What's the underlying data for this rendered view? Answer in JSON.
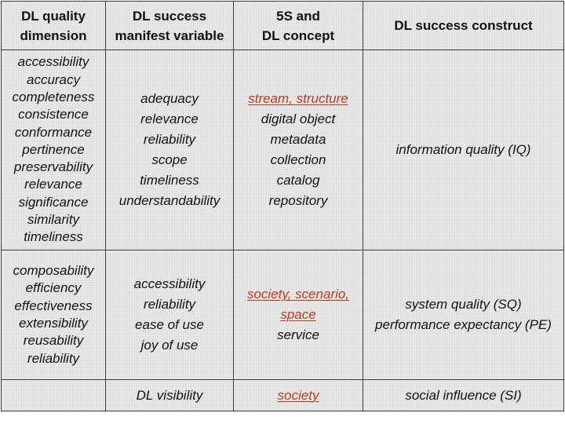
{
  "headers": [
    [
      "DL quality",
      "dimension"
    ],
    [
      "DL success",
      "manifest variable"
    ],
    [
      "5S and",
      "DL concept"
    ],
    [
      "DL success construct"
    ]
  ],
  "rows": [
    {
      "dimensions": [
        "accessibility",
        "accuracy",
        "completeness",
        "consistence",
        "conformance",
        "pertinence",
        "preservability",
        "relevance",
        "significance",
        "similarity",
        "timeliness"
      ],
      "manifest": [
        "adequacy",
        "relevance",
        "reliability",
        "scope",
        "timeliness",
        "understandability"
      ],
      "concepts": [
        {
          "text": "stream, structure",
          "highlight": true
        },
        {
          "text": "digital object",
          "highlight": false
        },
        {
          "text": "metadata",
          "highlight": false
        },
        {
          "text": "collection",
          "highlight": false
        },
        {
          "text": "catalog",
          "highlight": false
        },
        {
          "text": "repository",
          "highlight": false
        }
      ],
      "construct": [
        "information quality (IQ)"
      ]
    },
    {
      "dimensions": [
        "composability",
        "efficiency",
        "effectiveness",
        "extensibility",
        "reusability",
        "reliability"
      ],
      "manifest": [
        "accessibility",
        "reliability",
        "ease of use",
        "joy of use"
      ],
      "concepts": [
        {
          "text": "society, scenario,",
          "highlight": true
        },
        {
          "text": "space",
          "highlight": true
        },
        {
          "text": "service",
          "highlight": false
        }
      ],
      "construct": [
        "system quality (SQ)",
        "performance expectancy (PE)"
      ]
    },
    {
      "dimensions": [],
      "manifest": [
        "DL visibility"
      ],
      "concepts": [
        {
          "text": "society",
          "highlight": true
        }
      ],
      "construct": [
        "social influence (SI)"
      ]
    }
  ],
  "colors": {
    "highlight": "#c0391b",
    "cell_background": "#e9e9e9",
    "border": "#3a3a3a"
  }
}
